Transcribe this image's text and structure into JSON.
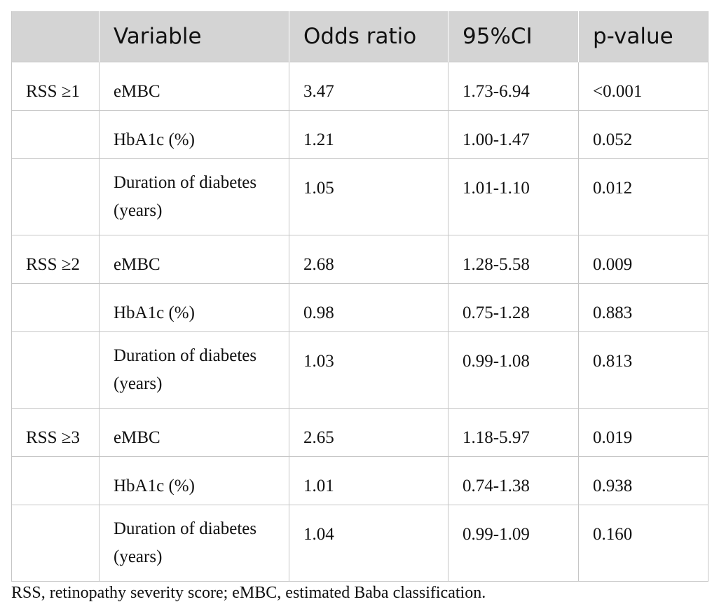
{
  "table": {
    "headers": [
      "",
      "Variable",
      "Odds ratio",
      "95%CI",
      "p-value"
    ],
    "rows": [
      {
        "group": "RSS ≥1",
        "variable": "eMBC",
        "odds_ratio": "3.47",
        "ci": "1.73-6.94",
        "p_value": "<0.001"
      },
      {
        "group": "",
        "variable": "HbA1c (%)",
        "odds_ratio": "1.21",
        "ci": "1.00-1.47",
        "p_value": "0.052"
      },
      {
        "group": "",
        "variable": "Duration of diabetes (years)",
        "odds_ratio": "1.05",
        "ci": "1.01-1.10",
        "p_value": "0.012"
      },
      {
        "group": "RSS ≥2",
        "variable": "eMBC",
        "odds_ratio": "2.68",
        "ci": "1.28-5.58",
        "p_value": "0.009"
      },
      {
        "group": "",
        "variable": "HbA1c (%)",
        "odds_ratio": "0.98",
        "ci": "0.75-1.28",
        "p_value": "0.883"
      },
      {
        "group": "",
        "variable": "Duration of diabetes (years)",
        "odds_ratio": "1.03",
        "ci": "0.99-1.08",
        "p_value": "0.813"
      },
      {
        "group": "RSS ≥3",
        "variable": "eMBC",
        "odds_ratio": "2.65",
        "ci": "1.18-5.97",
        "p_value": "0.019"
      },
      {
        "group": "",
        "variable": "HbA1c (%)",
        "odds_ratio": "1.01",
        "ci": "0.74-1.38",
        "p_value": "0.938"
      },
      {
        "group": "",
        "variable": "Duration of diabetes (years)",
        "odds_ratio": "1.04",
        "ci": "0.99-1.09",
        "p_value": "0.160"
      }
    ]
  },
  "footnote": "RSS, retinopathy severity score; eMBC, estimated Baba classification.",
  "colors": {
    "header_bg": "#d4d4d4",
    "border": "#c6c6c6",
    "text": "#111111"
  }
}
